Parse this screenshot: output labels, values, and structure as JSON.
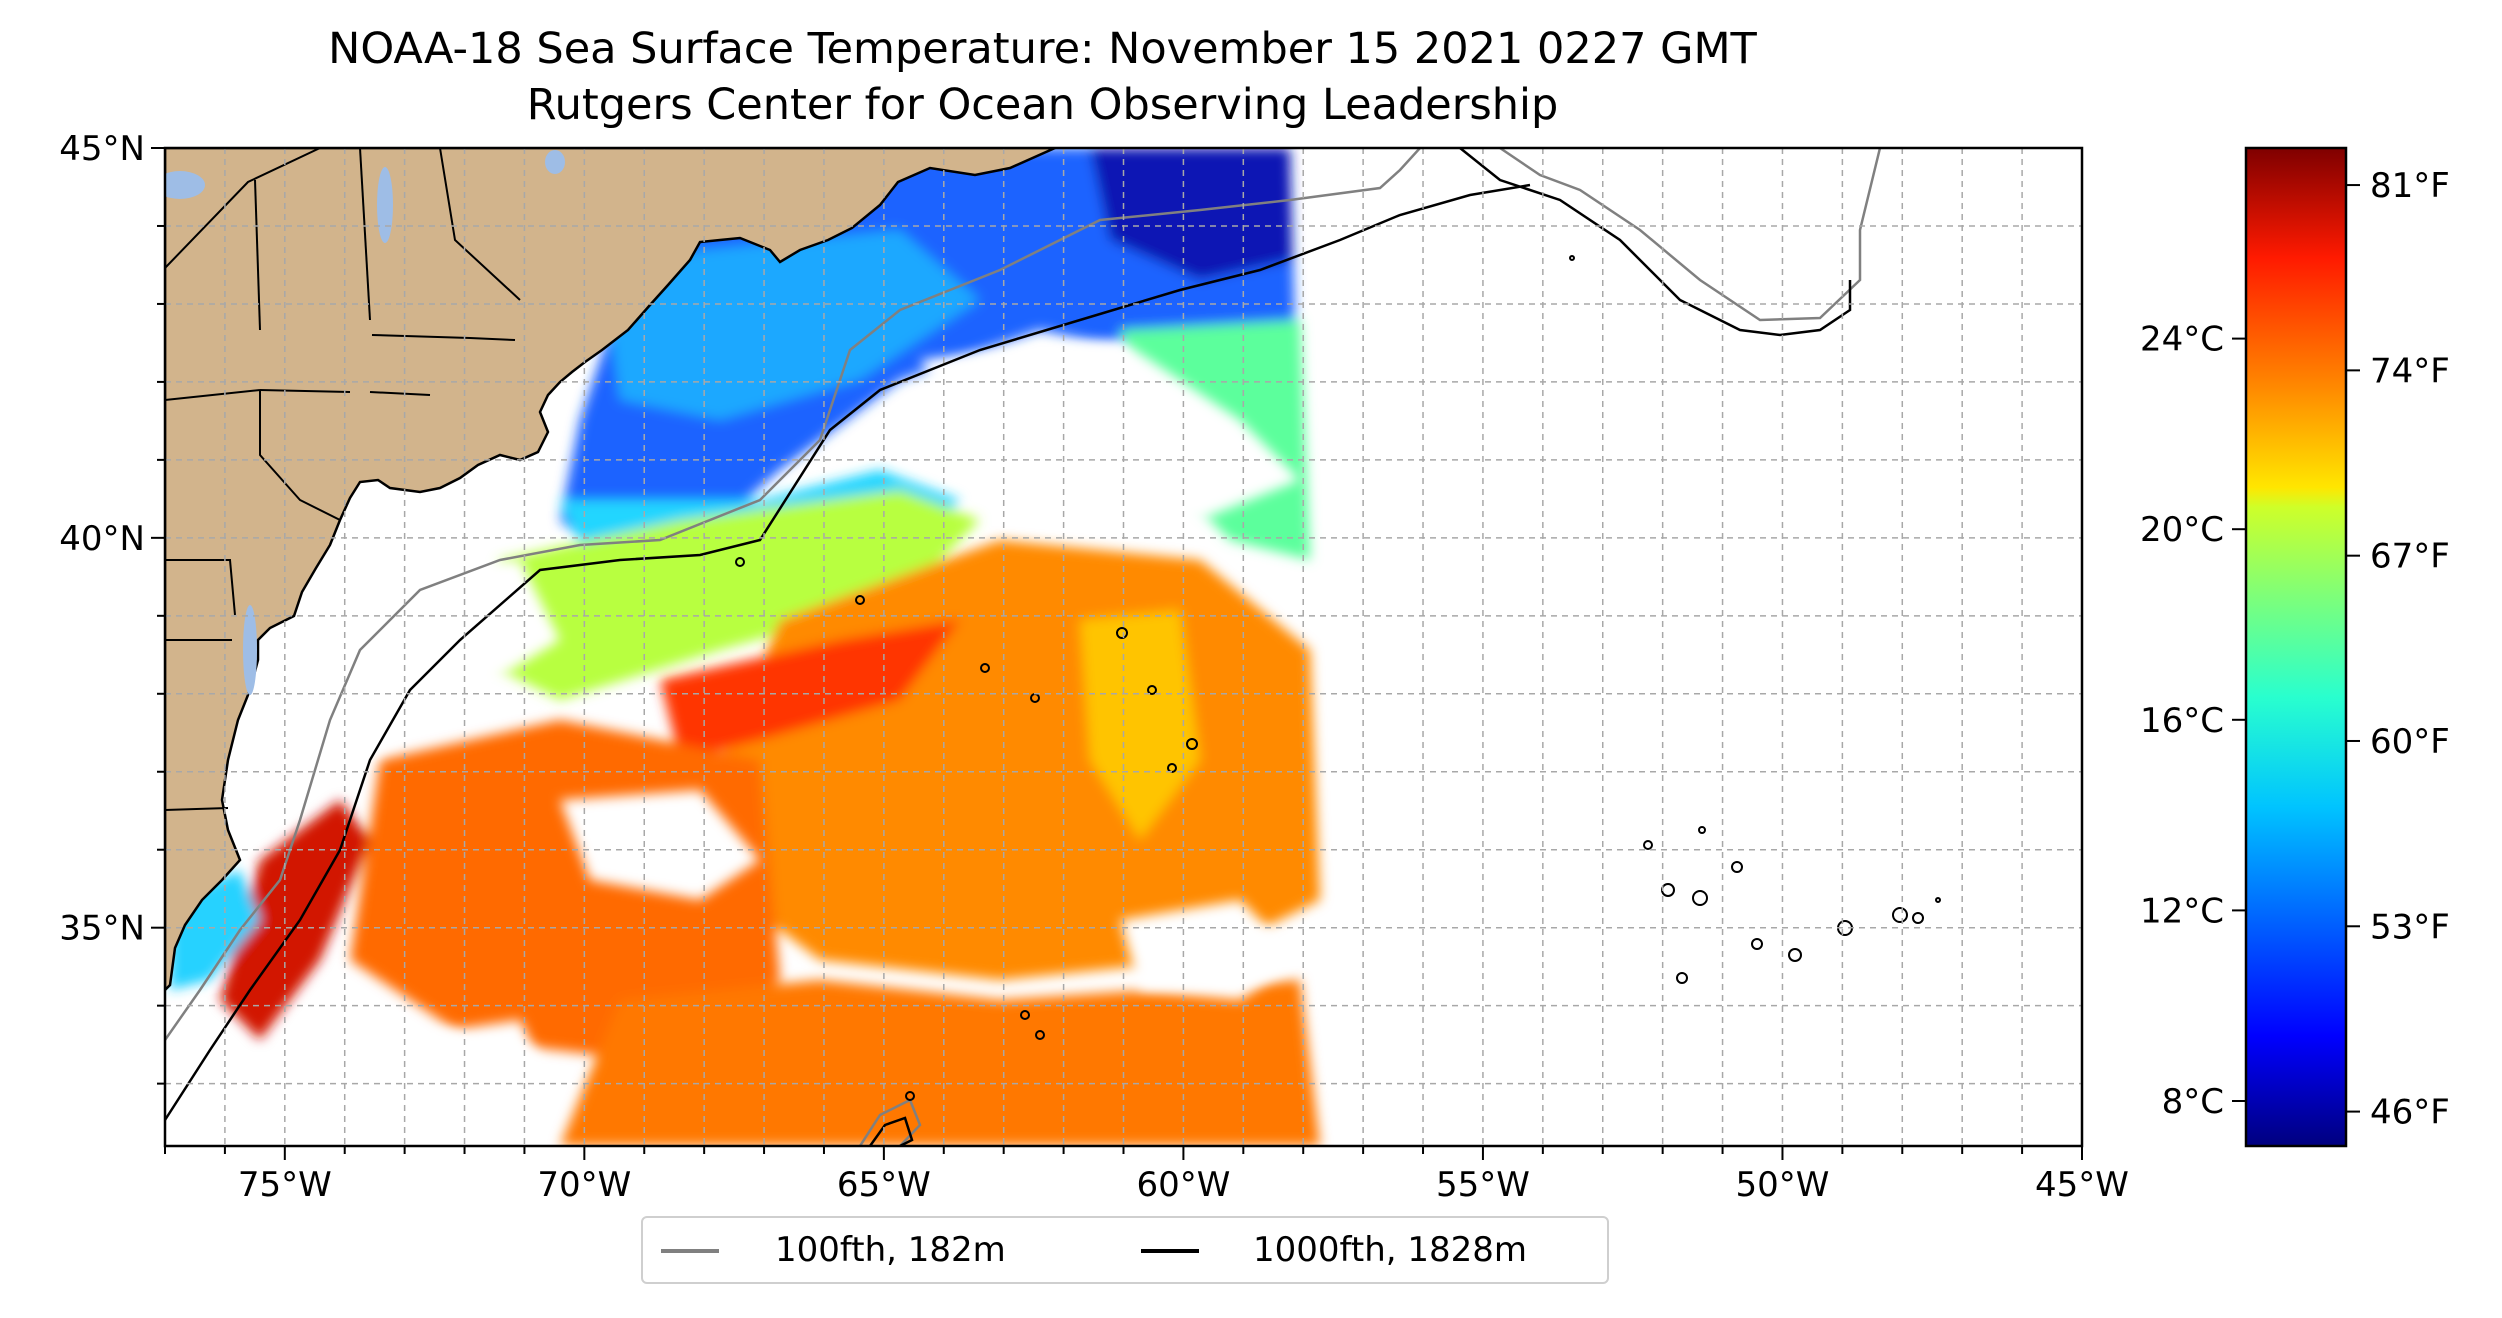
{
  "title": "NOAA-18 Sea Surface Temperature: November 15 2021 0227 GMT",
  "subtitle": "Rutgers Center for Ocean Observing Leadership",
  "map": {
    "lon_range": [
      -77,
      -45
    ],
    "lat_range": [
      32.2,
      45
    ],
    "lon_ticks": [
      "75°W",
      "70°W",
      "65°W",
      "60°W",
      "55°W",
      "50°W",
      "45°W"
    ],
    "lat_ticks": [
      "45°N",
      "40°N",
      "35°N"
    ],
    "gridlines": true,
    "land_color": "#d2b48c",
    "water_body_color": "#9ebde6"
  },
  "colorbar": {
    "colormap": "jet",
    "fahrenheit_ticks": [
      "81°F",
      "74°F",
      "67°F",
      "60°F",
      "53°F",
      "46°F"
    ],
    "celsius_ticks": [
      "24°C",
      "20°C",
      "16°C",
      "12°C",
      "8°C"
    ]
  },
  "legend": {
    "items": [
      {
        "label": "100fth, 182m",
        "color": "#808080"
      },
      {
        "label": "1000fth, 1828m",
        "color": "#000000"
      }
    ]
  }
}
